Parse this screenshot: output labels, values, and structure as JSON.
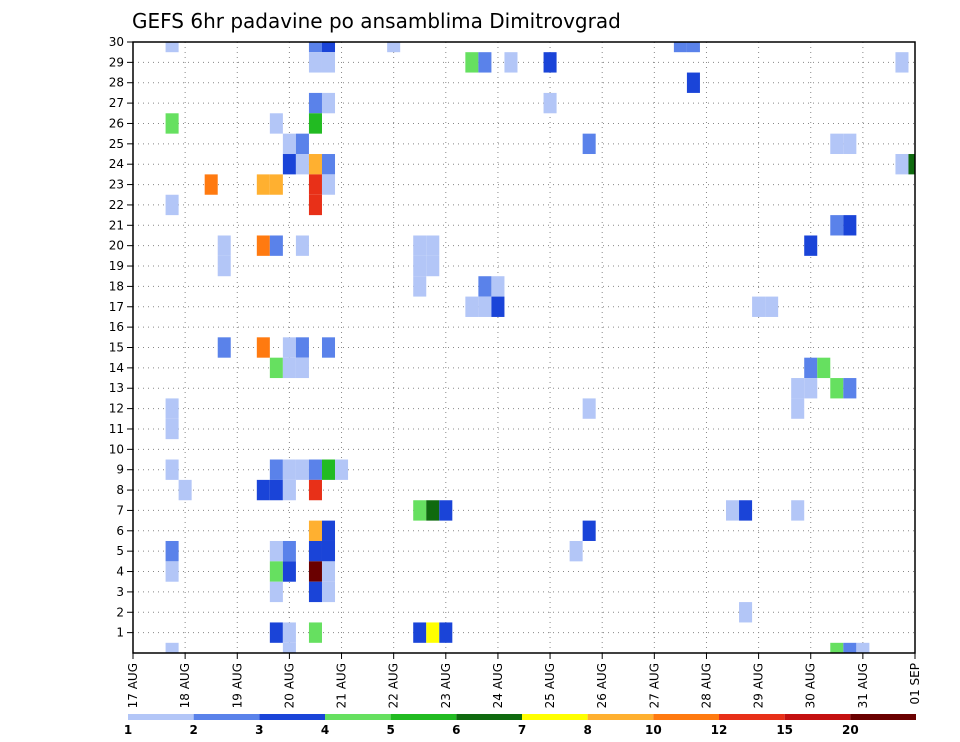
{
  "chart_data": {
    "type": "heatmap",
    "title": "GEFS 6hr padavine po ansamblima Dimitrovgrad",
    "x_tick_labels": [
      "17 AUG",
      "18 AUG",
      "19 AUG",
      "20 AUG",
      "21 AUG",
      "22 AUG",
      "23 AUG",
      "24 AUG",
      "25 AUG",
      "26 AUG",
      "27 AUG",
      "28 AUG",
      "29 AUG",
      "30 AUG",
      "31 AUG",
      "01 SEP"
    ],
    "x_range_days": [
      0,
      15
    ],
    "y_tick_labels": [
      "1",
      "2",
      "3",
      "4",
      "5",
      "6",
      "7",
      "8",
      "9",
      "10",
      "11",
      "12",
      "13",
      "14",
      "15",
      "16",
      "17",
      "18",
      "19",
      "20",
      "21",
      "22",
      "23",
      "24",
      "25",
      "26",
      "27",
      "28",
      "29",
      "30"
    ],
    "y_range": [
      0,
      30
    ],
    "grid": true,
    "colorbar": {
      "boundaries": [
        1,
        2,
        3,
        4,
        5,
        6,
        7,
        8,
        10,
        12,
        15,
        20
      ],
      "labels": [
        "1",
        "2",
        "3",
        "4",
        "5",
        "6",
        "7",
        "8",
        "10",
        "12",
        "15",
        "20"
      ],
      "colors": [
        "#b3c6f7",
        "#5a82ea",
        "#1a44d8",
        "#66e060",
        "#22bb22",
        "#0f6a0f",
        "#ffff00",
        "#ffb030",
        "#ff7a10",
        "#e83018",
        "#c41010",
        "#6a0000"
      ]
    },
    "cells": [
      {
        "m": 30,
        "d": 0.75,
        "c": 0
      },
      {
        "m": 30,
        "d": 3.5,
        "c": 1
      },
      {
        "m": 30,
        "d": 3.75,
        "c": 2
      },
      {
        "m": 30,
        "d": 5,
        "c": 0
      },
      {
        "m": 30,
        "d": 10.5,
        "c": 1
      },
      {
        "m": 30,
        "d": 10.75,
        "c": 1
      },
      {
        "m": 29,
        "d": 3.5,
        "c": 0
      },
      {
        "m": 29,
        "d": 3.75,
        "c": 0
      },
      {
        "m": 29,
        "d": 6.5,
        "c": 3
      },
      {
        "m": 29,
        "d": 6.75,
        "c": 1
      },
      {
        "m": 29,
        "d": 7.25,
        "c": 0
      },
      {
        "m": 29,
        "d": 8,
        "c": 2
      },
      {
        "m": 29,
        "d": 14.75,
        "c": 0
      },
      {
        "m": 28,
        "d": 10.75,
        "c": 2
      },
      {
        "m": 27,
        "d": 3.5,
        "c": 1
      },
      {
        "m": 27,
        "d": 3.75,
        "c": 0
      },
      {
        "m": 27,
        "d": 8,
        "c": 0
      },
      {
        "m": 26,
        "d": 0.75,
        "c": 3
      },
      {
        "m": 26,
        "d": 2.75,
        "c": 0
      },
      {
        "m": 26,
        "d": 3.5,
        "c": 4
      },
      {
        "m": 25,
        "d": 3,
        "c": 0
      },
      {
        "m": 25,
        "d": 3.25,
        "c": 1
      },
      {
        "m": 25,
        "d": 8.75,
        "c": 1
      },
      {
        "m": 25,
        "d": 13.5,
        "c": 0
      },
      {
        "m": 25,
        "d": 13.75,
        "c": 0
      },
      {
        "m": 24,
        "d": 3,
        "c": 2
      },
      {
        "m": 24,
        "d": 3.25,
        "c": 0
      },
      {
        "m": 24,
        "d": 3.5,
        "c": 7
      },
      {
        "m": 24,
        "d": 3.75,
        "c": 1
      },
      {
        "m": 24,
        "d": 14.75,
        "c": 0
      },
      {
        "m": 24,
        "d": 15,
        "c": 5
      },
      {
        "m": 23,
        "d": 1.5,
        "c": 8
      },
      {
        "m": 23,
        "d": 2.5,
        "c": 7
      },
      {
        "m": 23,
        "d": 2.75,
        "c": 7
      },
      {
        "m": 23,
        "d": 3.5,
        "c": 9
      },
      {
        "m": 23,
        "d": 3.75,
        "c": 0
      },
      {
        "m": 22,
        "d": 0.75,
        "c": 0
      },
      {
        "m": 22,
        "d": 3.5,
        "c": 9
      },
      {
        "m": 21,
        "d": 13.5,
        "c": 1
      },
      {
        "m": 21,
        "d": 13.75,
        "c": 2
      },
      {
        "m": 20,
        "d": 1.75,
        "c": 0
      },
      {
        "m": 20,
        "d": 2.5,
        "c": 8
      },
      {
        "m": 20,
        "d": 2.75,
        "c": 1
      },
      {
        "m": 20,
        "d": 3.25,
        "c": 0
      },
      {
        "m": 20,
        "d": 5.5,
        "c": 0
      },
      {
        "m": 20,
        "d": 5.75,
        "c": 0
      },
      {
        "m": 20,
        "d": 13,
        "c": 2
      },
      {
        "m": 19,
        "d": 1.75,
        "c": 0
      },
      {
        "m": 19,
        "d": 5.5,
        "c": 0
      },
      {
        "m": 19,
        "d": 5.75,
        "c": 0
      },
      {
        "m": 18,
        "d": 5.5,
        "c": 0
      },
      {
        "m": 18,
        "d": 6.75,
        "c": 1
      },
      {
        "m": 18,
        "d": 7,
        "c": 0
      },
      {
        "m": 17,
        "d": 6.5,
        "c": 0
      },
      {
        "m": 17,
        "d": 6.75,
        "c": 0
      },
      {
        "m": 17,
        "d": 7,
        "c": 2
      },
      {
        "m": 17,
        "d": 12,
        "c": 0
      },
      {
        "m": 17,
        "d": 12.25,
        "c": 0
      },
      {
        "m": 15,
        "d": 1.75,
        "c": 1
      },
      {
        "m": 15,
        "d": 2.5,
        "c": 8
      },
      {
        "m": 15,
        "d": 3,
        "c": 0
      },
      {
        "m": 15,
        "d": 3.25,
        "c": 1
      },
      {
        "m": 15,
        "d": 3.75,
        "c": 1
      },
      {
        "m": 14,
        "d": 2.75,
        "c": 3
      },
      {
        "m": 14,
        "d": 3,
        "c": 0
      },
      {
        "m": 14,
        "d": 3.25,
        "c": 0
      },
      {
        "m": 14,
        "d": 13,
        "c": 1
      },
      {
        "m": 14,
        "d": 13.25,
        "c": 3
      },
      {
        "m": 13,
        "d": 12.75,
        "c": 0
      },
      {
        "m": 13,
        "d": 13,
        "c": 0
      },
      {
        "m": 13,
        "d": 13.5,
        "c": 3
      },
      {
        "m": 13,
        "d": 13.75,
        "c": 1
      },
      {
        "m": 12,
        "d": 0.75,
        "c": 0
      },
      {
        "m": 12,
        "d": 8.75,
        "c": 0
      },
      {
        "m": 12,
        "d": 12.75,
        "c": 0
      },
      {
        "m": 11,
        "d": 0.75,
        "c": 0
      },
      {
        "m": 9,
        "d": 0.75,
        "c": 0
      },
      {
        "m": 9,
        "d": 2.75,
        "c": 1
      },
      {
        "m": 9,
        "d": 3,
        "c": 0
      },
      {
        "m": 9,
        "d": 3.25,
        "c": 0
      },
      {
        "m": 9,
        "d": 3.5,
        "c": 1
      },
      {
        "m": 9,
        "d": 3.75,
        "c": 4
      },
      {
        "m": 9,
        "d": 4,
        "c": 0
      },
      {
        "m": 8,
        "d": 1,
        "c": 0
      },
      {
        "m": 8,
        "d": 2.5,
        "c": 2
      },
      {
        "m": 8,
        "d": 2.75,
        "c": 2
      },
      {
        "m": 8,
        "d": 3,
        "c": 0
      },
      {
        "m": 8,
        "d": 3.5,
        "c": 9
      },
      {
        "m": 7,
        "d": 5.5,
        "c": 3
      },
      {
        "m": 7,
        "d": 5.75,
        "c": 5
      },
      {
        "m": 7,
        "d": 6,
        "c": 2
      },
      {
        "m": 7,
        "d": 11.5,
        "c": 0
      },
      {
        "m": 7,
        "d": 11.75,
        "c": 2
      },
      {
        "m": 7,
        "d": 12.75,
        "c": 0
      },
      {
        "m": 6,
        "d": 3.5,
        "c": 7
      },
      {
        "m": 6,
        "d": 3.75,
        "c": 2
      },
      {
        "m": 6,
        "d": 8.75,
        "c": 2
      },
      {
        "m": 5,
        "d": 0.75,
        "c": 1
      },
      {
        "m": 5,
        "d": 2.75,
        "c": 0
      },
      {
        "m": 5,
        "d": 3,
        "c": 1
      },
      {
        "m": 5,
        "d": 3.5,
        "c": 2
      },
      {
        "m": 5,
        "d": 3.75,
        "c": 2
      },
      {
        "m": 5,
        "d": 8.5,
        "c": 0
      },
      {
        "m": 4,
        "d": 0.75,
        "c": 0
      },
      {
        "m": 4,
        "d": 2.75,
        "c": 3
      },
      {
        "m": 4,
        "d": 3,
        "c": 2
      },
      {
        "m": 4,
        "d": 3.5,
        "c": 11
      },
      {
        "m": 4,
        "d": 3.75,
        "c": 0
      },
      {
        "m": 3,
        "d": 2.75,
        "c": 0
      },
      {
        "m": 3,
        "d": 3.5,
        "c": 2
      },
      {
        "m": 3,
        "d": 3.75,
        "c": 0
      },
      {
        "m": 2,
        "d": 11.75,
        "c": 0
      },
      {
        "m": 1,
        "d": 2.75,
        "c": 2
      },
      {
        "m": 1,
        "d": 3,
        "c": 0
      },
      {
        "m": 1,
        "d": 3.5,
        "c": 3
      },
      {
        "m": 1,
        "d": 5.5,
        "c": 2
      },
      {
        "m": 1,
        "d": 5.75,
        "c": 6
      },
      {
        "m": 1,
        "d": 6,
        "c": 2
      },
      {
        "m": 0,
        "d": 0.75,
        "c": 0
      },
      {
        "m": 0,
        "d": 3,
        "c": 0
      },
      {
        "m": 0,
        "d": 13.5,
        "c": 3
      },
      {
        "m": 0,
        "d": 13.75,
        "c": 1
      },
      {
        "m": 0,
        "d": 14,
        "c": 0
      }
    ]
  }
}
